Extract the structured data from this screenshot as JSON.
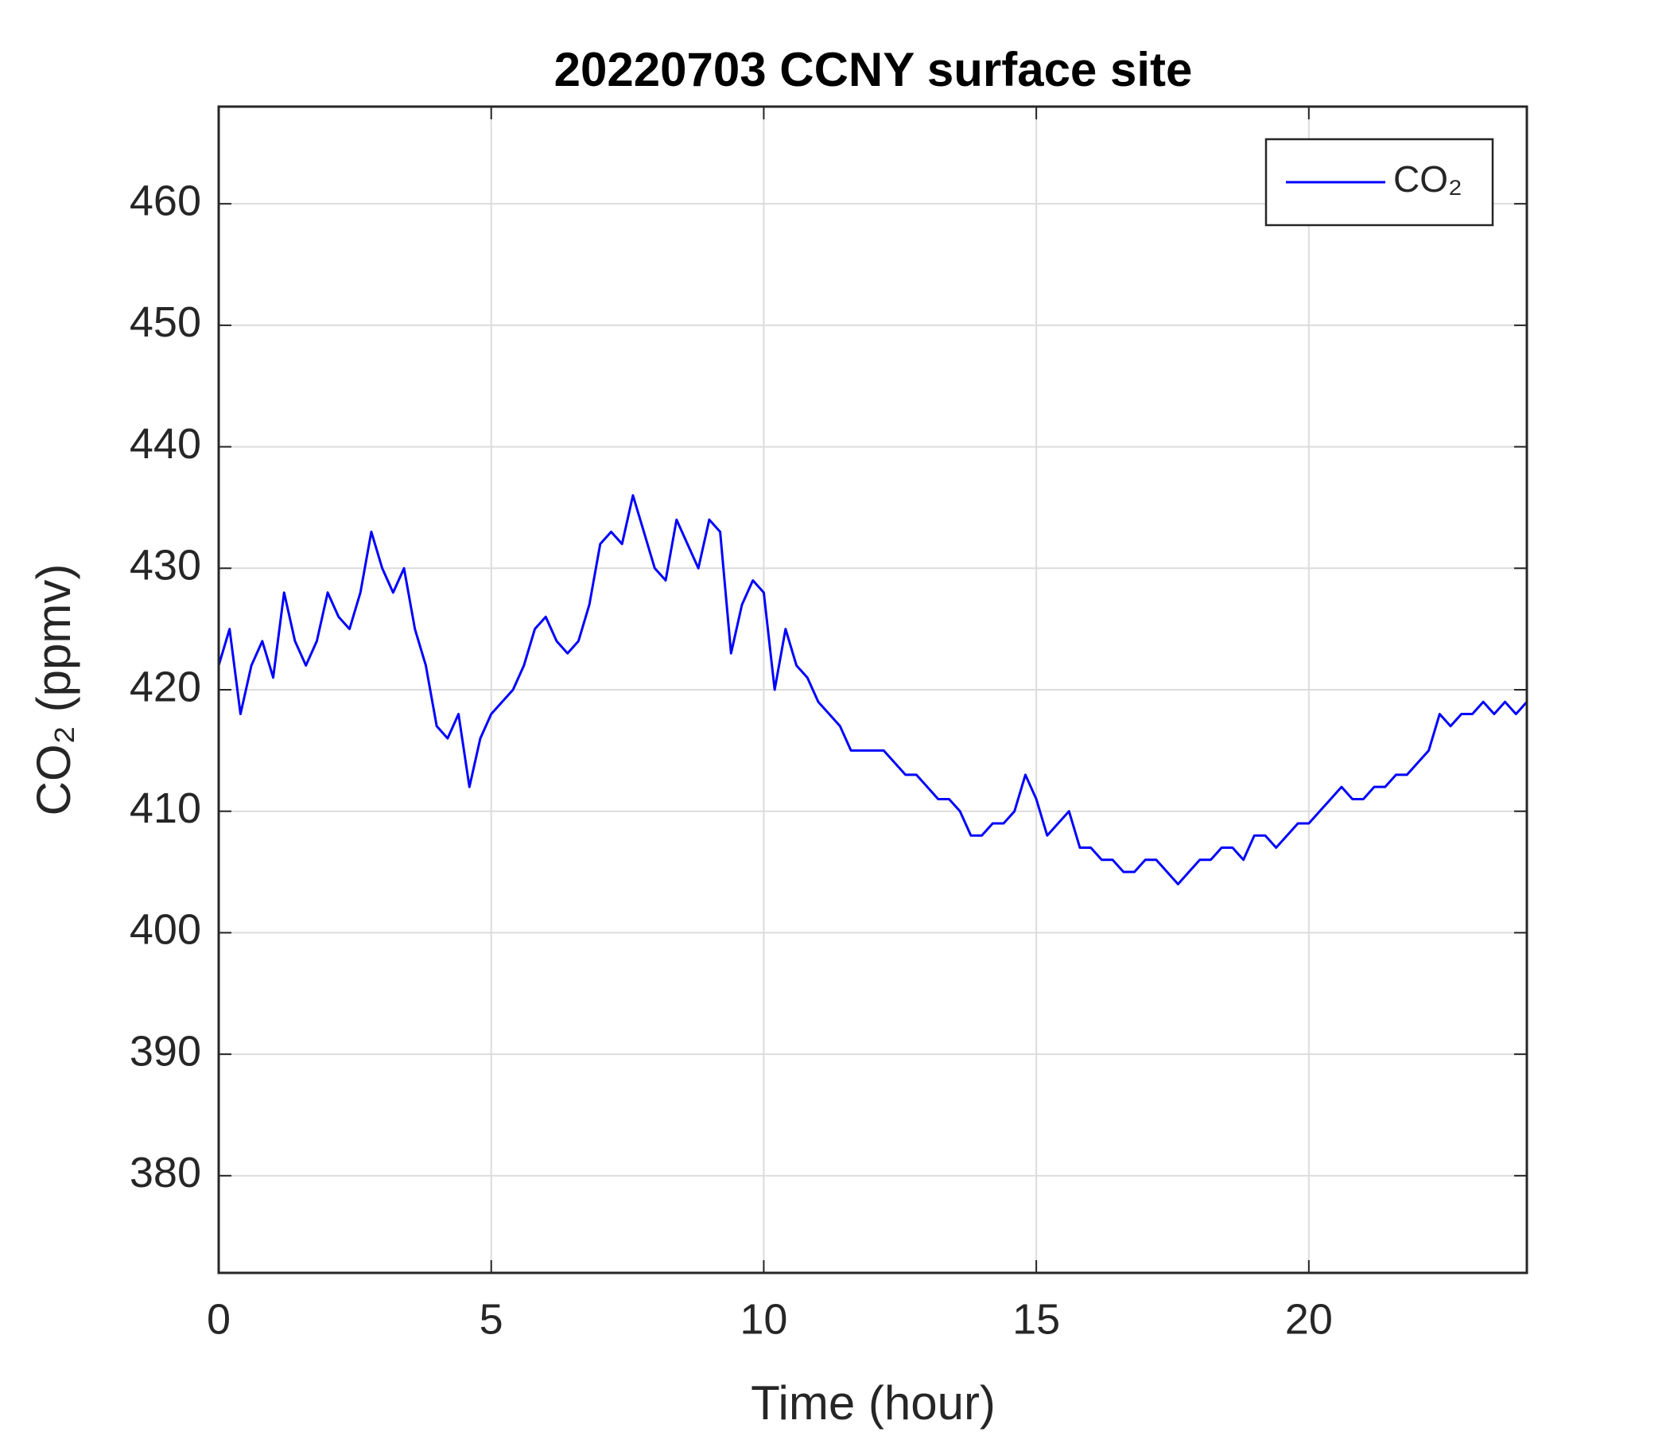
{
  "chart_data": {
    "type": "line",
    "title": "20220703 CCNY surface site",
    "x_label": "Time (hour)",
    "y_label": "CO₂ (ppmv)",
    "x": [
      0,
      0.2,
      0.4,
      0.6,
      0.8,
      1,
      1.2,
      1.4,
      1.6,
      1.8,
      2,
      2.2,
      2.4,
      2.6,
      2.8,
      3,
      3.2,
      3.4,
      3.6,
      3.8,
      4,
      4.2,
      4.4,
      4.6,
      4.8,
      5,
      5.2,
      5.4,
      5.6,
      5.8,
      6,
      6.2,
      6.4,
      6.6,
      6.8,
      7,
      7.2,
      7.4,
      7.6,
      7.8,
      8,
      8.2,
      8.4,
      8.6,
      8.8,
      9,
      9.2,
      9.4,
      9.6,
      9.8,
      10,
      10.2,
      10.4,
      10.6,
      10.8,
      11,
      11.2,
      11.4,
      11.6,
      11.8,
      12,
      12.2,
      12.4,
      12.6,
      12.8,
      13,
      13.2,
      13.4,
      13.6,
      13.8,
      14,
      14.2,
      14.4,
      14.6,
      14.8,
      15,
      15.2,
      15.4,
      15.6,
      15.8,
      16,
      16.2,
      16.4,
      16.6,
      16.8,
      17,
      17.2,
      17.4,
      17.6,
      17.8,
      18,
      18.2,
      18.4,
      18.6,
      18.8,
      19,
      19.2,
      19.4,
      19.6,
      19.8,
      20,
      20.2,
      20.4,
      20.6,
      20.8,
      21,
      21.2,
      21.4,
      21.6,
      21.8,
      22,
      22.2,
      22.4,
      22.6,
      22.8,
      23,
      23.2,
      23.4,
      23.6,
      23.8,
      24
    ],
    "series": [
      {
        "name": "CO₂",
        "color": "#0000ff",
        "values": [
          422,
          425,
          418,
          422,
          424,
          421,
          428,
          424,
          422,
          424,
          428,
          426,
          425,
          428,
          433,
          430,
          428,
          430,
          425,
          422,
          417,
          416,
          418,
          412,
          416,
          418,
          419,
          420,
          422,
          425,
          426,
          424,
          423,
          424,
          427,
          432,
          433,
          432,
          436,
          433,
          430,
          429,
          434,
          432,
          430,
          434,
          433,
          423,
          427,
          429,
          428,
          420,
          425,
          422,
          421,
          419,
          418,
          417,
          415,
          415,
          415,
          415,
          414,
          413,
          413,
          412,
          411,
          411,
          410,
          408,
          408,
          409,
          409,
          410,
          413,
          411,
          408,
          409,
          410,
          407,
          407,
          406,
          406,
          405,
          405,
          406,
          406,
          405,
          404,
          405,
          406,
          406,
          407,
          407,
          406,
          408,
          408,
          407,
          408,
          409,
          409,
          410,
          411,
          412,
          411,
          411,
          412,
          412,
          413,
          413,
          414,
          415,
          418,
          417,
          418,
          418,
          419,
          418,
          419,
          418,
          419
        ]
      }
    ],
    "xlim": [
      0,
      24
    ],
    "xticks": [
      0,
      5,
      10,
      15,
      20
    ],
    "ylim": [
      372,
      468
    ],
    "yticks": [
      380,
      390,
      400,
      410,
      420,
      430,
      440,
      450,
      460
    ],
    "grid": true,
    "legend": "upper right"
  }
}
